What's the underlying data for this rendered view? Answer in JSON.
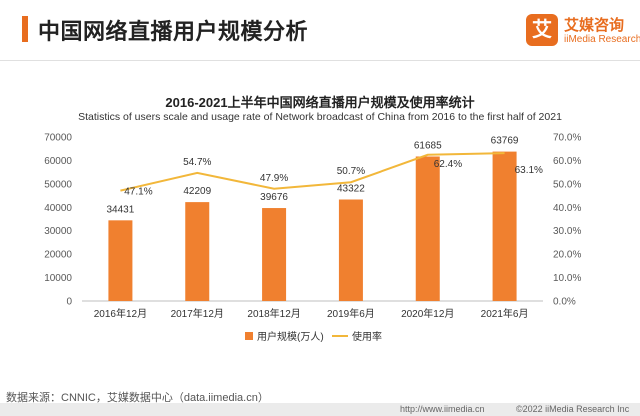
{
  "header": {
    "title": "中国网络直播用户规模分析",
    "logo": {
      "mark": "艾",
      "name": "艾媒咨询",
      "sub": "iiMedia Research"
    }
  },
  "chart_data": {
    "type": "bar",
    "title": "2016-2021上半年中国网络直播用户规模及使用率统计",
    "subtitle": "Statistics of users scale and usage rate of Network broadcast of China from 2016 to the first half of 2021",
    "categories": [
      "2016年12月",
      "2017年12月",
      "2018年12月",
      "2019年6月",
      "2020年12月",
      "2021年6月"
    ],
    "series": [
      {
        "name": "用户规模(万人)",
        "type": "bar",
        "axis": "left",
        "color": "#f0802f",
        "values": [
          34431,
          42209,
          39676,
          43322,
          61685,
          63769
        ],
        "labels": [
          "34431",
          "42209",
          "39676",
          "43322",
          "61685",
          "63769"
        ]
      },
      {
        "name": "使用率",
        "type": "line",
        "axis": "right",
        "color": "#f2b73a",
        "values": [
          47.1,
          54.7,
          47.9,
          50.7,
          62.4,
          63.1
        ],
        "labels": [
          "47.1%",
          "54.7%",
          "47.9%",
          "50.7%",
          "62.4%",
          "63.1%"
        ]
      }
    ],
    "y_left": {
      "min": 0,
      "max": 70000,
      "ticks": [
        "0",
        "10000",
        "20000",
        "30000",
        "40000",
        "50000",
        "60000",
        "70000"
      ]
    },
    "y_right": {
      "min": 0,
      "max": 70,
      "ticks": [
        "0.0%",
        "10.0%",
        "20.0%",
        "30.0%",
        "40.0%",
        "50.0%",
        "60.0%",
        "70.0%"
      ]
    },
    "legend_position": "bottom-center",
    "grid": false
  },
  "footer": {
    "source": "数据来源：CNNIC，艾媒数据中心（data.iimedia.cn）",
    "url": "http://www.iimedia.cn",
    "copyright": "©2022  iiMedia Research  Inc"
  }
}
